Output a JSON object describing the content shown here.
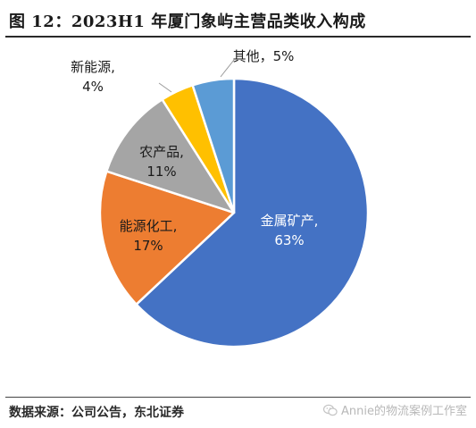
{
  "title": "图 12：2023H1 年厦门象屿主营品类收入构成",
  "source": "数据来源：公司公告，东北证券",
  "watermark": "Annie的物流案例工作室",
  "chart_data": {
    "type": "pie",
    "title": "图 12：2023H1 年厦门象屿主营品类收入构成",
    "slices": [
      {
        "label": "金属矿产,",
        "value": 63,
        "display": "63%",
        "color": "#4472C4"
      },
      {
        "label": "能源化工,",
        "value": 17,
        "display": "17%",
        "color": "#ED7D31"
      },
      {
        "label": "农产品,",
        "value": 11,
        "display": "11%",
        "color": "#A5A5A5"
      },
      {
        "label": "新能源,",
        "value": 4,
        "display": "4%",
        "color": "#FFC000"
      },
      {
        "label": "其他，",
        "value": 5,
        "display": "5%",
        "color": "#5B9BD5"
      }
    ]
  }
}
